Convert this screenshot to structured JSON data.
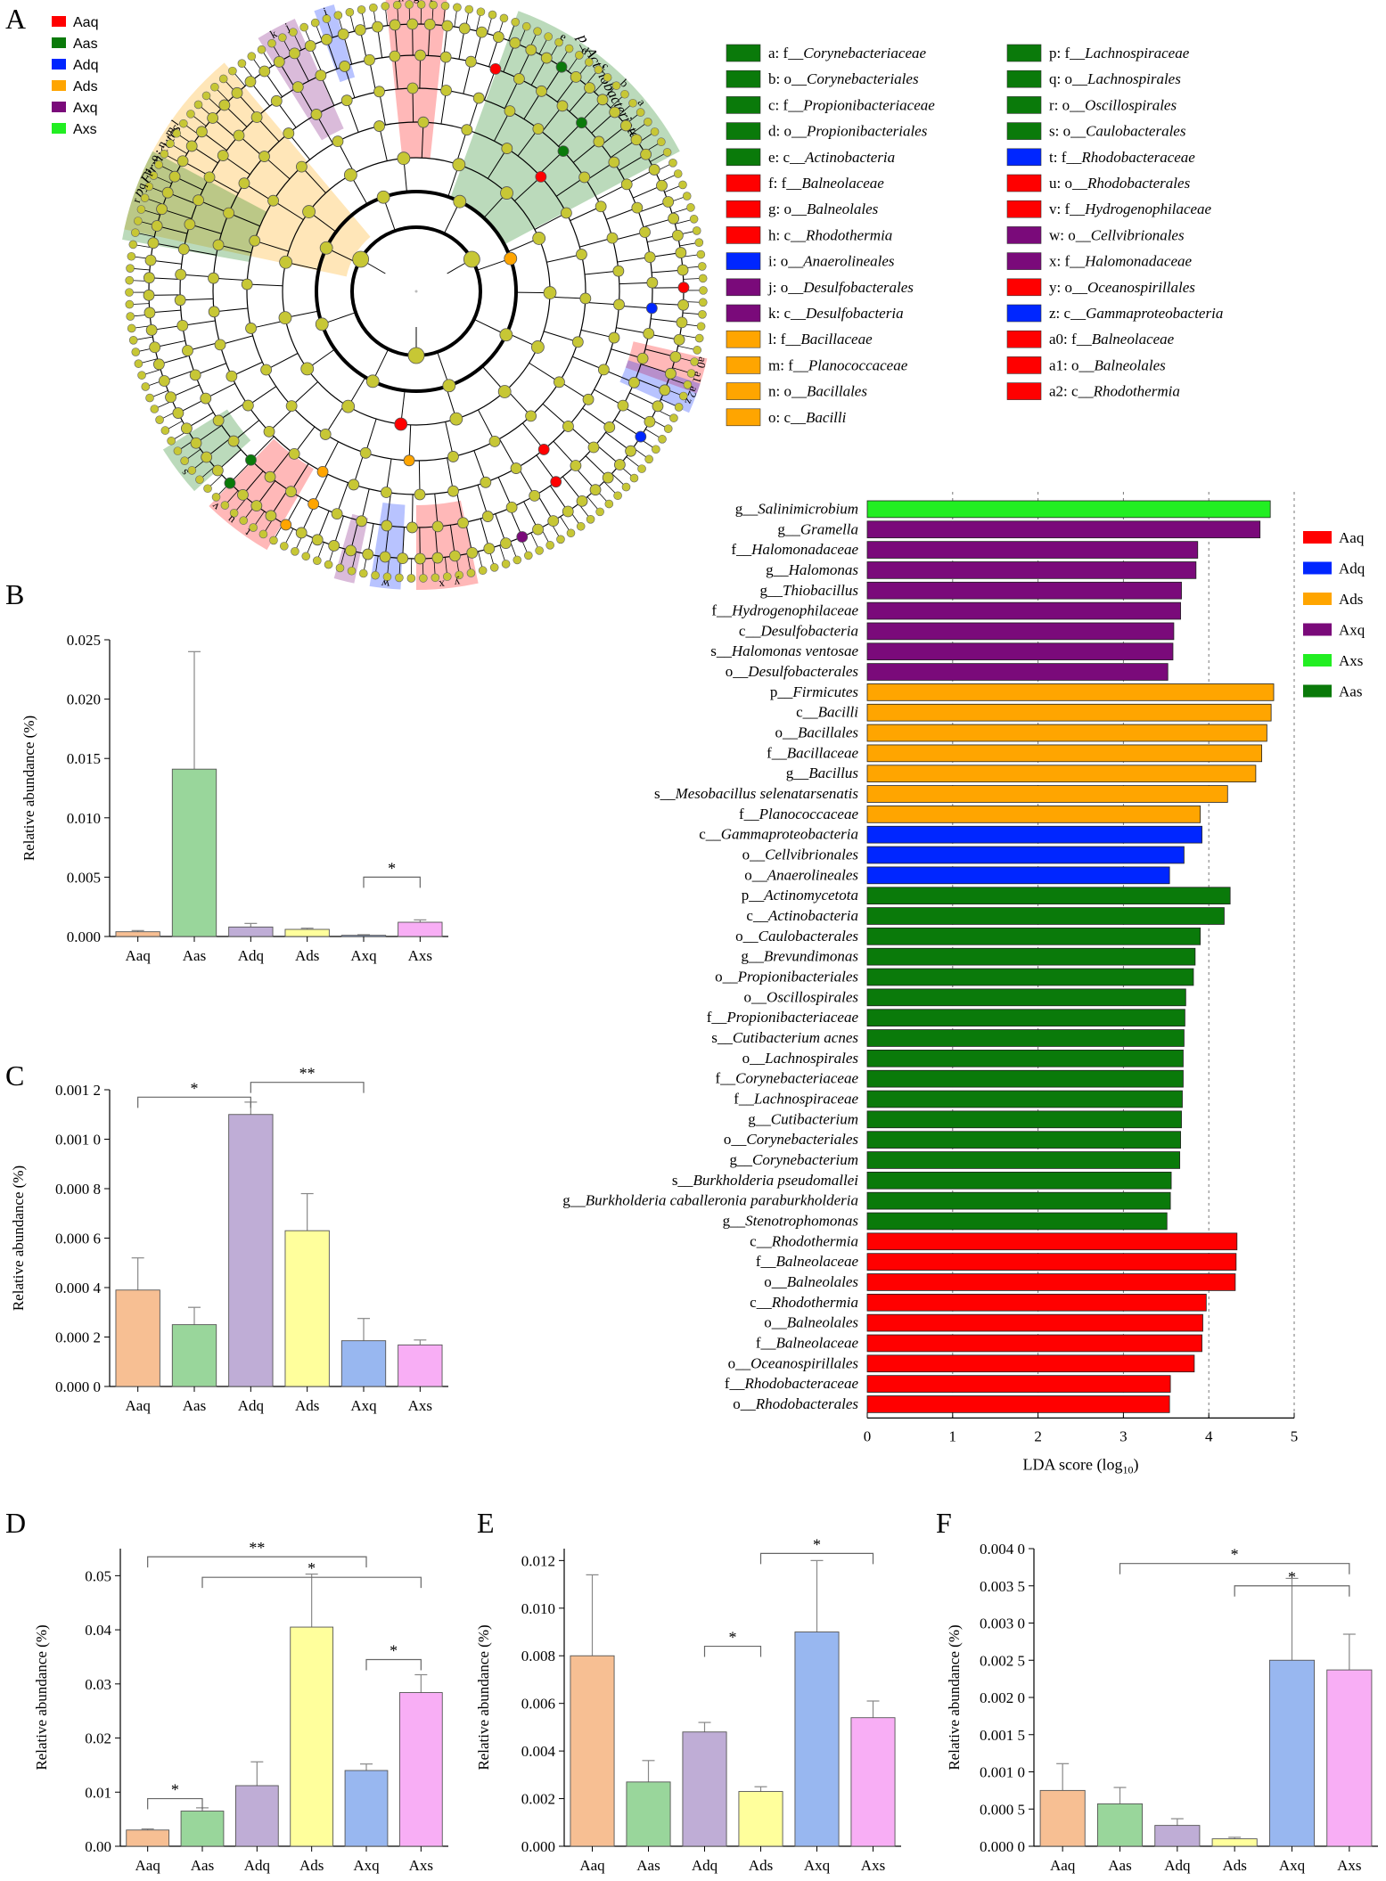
{
  "panel_letters": [
    "A",
    "B",
    "C",
    "D",
    "E",
    "F"
  ],
  "colors": {
    "Aaq": "#ff0000",
    "Aas": "#0a7a0a",
    "Adq": "#0026ff",
    "Ads": "#ffa500",
    "Axq": "#7a0a7a",
    "Axs": "#22ee22",
    "bar_Aaq": "#f7bf93",
    "bar_Aas": "#99d69b",
    "bar_Adq": "#bfadd6",
    "bar_Ads": "#ffff9c",
    "bar_Axq": "#98b7f0",
    "bar_Axs": "#f8aef5",
    "node": "#c7c735"
  },
  "cladogram": {
    "group_legend": [
      {
        "name": "Aaq",
        "color": "#ff0000"
      },
      {
        "name": "Aas",
        "color": "#0a7a0a"
      },
      {
        "name": "Adq",
        "color": "#0026ff"
      },
      {
        "name": "Ads",
        "color": "#ffa500"
      },
      {
        "name": "Axq",
        "color": "#7a0a7a"
      },
      {
        "name": "Axs",
        "color": "#22ee22"
      }
    ],
    "clade_labels": [
      "p_Firmicutes",
      "p_Actinobacteriota"
    ],
    "sector_letters": [
      "h",
      "g",
      "f",
      "i",
      "k",
      "j",
      "o",
      "n",
      "m",
      "l",
      "r",
      "q",
      "p",
      "a",
      "b",
      "c",
      "d",
      "e",
      "a0",
      "a1",
      "a2",
      "z",
      "s",
      "t",
      "u",
      "v",
      "w",
      "x",
      "y"
    ],
    "taxa_legend": [
      {
        "key": "a:",
        "rank": "f__",
        "name": "Corynebacteriaceae",
        "color": "#0a7a0a"
      },
      {
        "key": "b:",
        "rank": "o__",
        "name": "Corynebacteriales",
        "color": "#0a7a0a"
      },
      {
        "key": "c:",
        "rank": "f__",
        "name": "Propionibacteriaceae",
        "color": "#0a7a0a"
      },
      {
        "key": "d:",
        "rank": "o__",
        "name": "Propionibacteriales",
        "color": "#0a7a0a"
      },
      {
        "key": "e:",
        "rank": "c__",
        "name": "Actinobacteria",
        "color": "#0a7a0a"
      },
      {
        "key": "f:",
        "rank": "f__",
        "name": "Balneolaceae",
        "color": "#ff0000"
      },
      {
        "key": "g:",
        "rank": "o__",
        "name": "Balneolales",
        "color": "#ff0000"
      },
      {
        "key": "h:",
        "rank": "c__",
        "name": "Rhodothermia",
        "color": "#ff0000"
      },
      {
        "key": "i:",
        "rank": "o__",
        "name": "Anaerolineales",
        "color": "#0026ff"
      },
      {
        "key": "j:",
        "rank": "o__",
        "name": "Desulfobacterales",
        "color": "#7a0a7a"
      },
      {
        "key": "k:",
        "rank": "c__",
        "name": "Desulfobacteria",
        "color": "#7a0a7a"
      },
      {
        "key": "l:",
        "rank": "f__",
        "name": "Bacillaceae",
        "color": "#ffa500"
      },
      {
        "key": "m:",
        "rank": "f__",
        "name": "Planococcaceae",
        "color": "#ffa500"
      },
      {
        "key": "n:",
        "rank": "o__",
        "name": "Bacillales",
        "color": "#ffa500"
      },
      {
        "key": "o:",
        "rank": "c__",
        "name": "Bacilli",
        "color": "#ffa500"
      },
      {
        "key": "p:",
        "rank": "f__",
        "name": "Lachnospiraceae",
        "color": "#0a7a0a"
      },
      {
        "key": "q:",
        "rank": "o__",
        "name": "Lachnospirales",
        "color": "#0a7a0a"
      },
      {
        "key": "r:",
        "rank": "o__",
        "name": "Oscillospirales",
        "color": "#0a7a0a"
      },
      {
        "key": "s:",
        "rank": "o__",
        "name": "Caulobacterales",
        "color": "#0a7a0a"
      },
      {
        "key": "t:",
        "rank": "f__",
        "name": "Rhodobacteraceae",
        "color": "#0026ff"
      },
      {
        "key": "u:",
        "rank": "o__",
        "name": "Rhodobacterales",
        "color": "#ff0000"
      },
      {
        "key": "v:",
        "rank": "f__",
        "name": "Hydrogenophilaceae",
        "color": "#ff0000"
      },
      {
        "key": "w:",
        "rank": "o__",
        "name": "Cellvibrionales",
        "color": "#7a0a7a"
      },
      {
        "key": "x:",
        "rank": "f__",
        "name": "Halomonadaceae",
        "color": "#7a0a7a"
      },
      {
        "key": "y:",
        "rank": "o__",
        "name": "Oceanospirillales",
        "color": "#ff0000"
      },
      {
        "key": "z:",
        "rank": "c__",
        "name": "Gammaproteobacteria",
        "color": "#0026ff"
      },
      {
        "key": "a0:",
        "rank": "f__",
        "name": "Balneolaceae",
        "color": "#ff0000"
      },
      {
        "key": "a1:",
        "rank": "o__",
        "name": "Balneolales",
        "color": "#ff0000"
      },
      {
        "key": "a2:",
        "rank": "c__",
        "name": "Rhodothermia",
        "color": "#ff0000"
      }
    ]
  },
  "chart_data": [
    {
      "panel": "B",
      "type": "bar",
      "categories": [
        "Aaq",
        "Aas",
        "Adq",
        "Ads",
        "Axq",
        "Axs"
      ],
      "values": [
        0.0004,
        0.0141,
        0.0008,
        0.0006,
        0.0001,
        0.0012
      ],
      "errors": [
        0.0001,
        0.0099,
        0.0003,
        0.0001,
        5e-05,
        0.0002
      ],
      "ylabel": "Relative abundance (%)",
      "ylim": [
        0,
        0.025
      ],
      "yticks": [
        0.0,
        0.005,
        0.01,
        0.015,
        0.02,
        0.025
      ],
      "yticklabels": [
        "0.000",
        "0.005",
        "0.010",
        "0.015",
        "0.020",
        "0.025"
      ],
      "significance": [
        {
          "from": "Axq",
          "to": "Axs",
          "label": "*",
          "level": 0.005
        }
      ]
    },
    {
      "panel": "C",
      "type": "bar",
      "categories": [
        "Aaq",
        "Aas",
        "Adq",
        "Ads",
        "Axq",
        "Axs"
      ],
      "values": [
        0.00039,
        0.00025,
        0.0011,
        0.00063,
        0.000185,
        0.000168
      ],
      "errors": [
        0.00013,
        7e-05,
        5e-05,
        0.00015,
        9e-05,
        2e-05
      ],
      "ylabel": "Relative abundance (%)",
      "ylim": [
        0,
        0.0012
      ],
      "yticks": [
        0.0,
        0.0002,
        0.0004,
        0.0006,
        0.0008,
        0.001,
        0.0012
      ],
      "yticklabels": [
        "0.000 0",
        "0.000 2",
        "0.000 4",
        "0.000 6",
        "0.000 8",
        "0.001 0",
        "0.001 2"
      ],
      "significance": [
        {
          "from": "Aaq",
          "to": "Adq",
          "label": "*",
          "level": 0.00117
        },
        {
          "from": "Adq",
          "to": "Axq",
          "label": "**",
          "level": 0.00123
        }
      ]
    },
    {
      "panel": "lda",
      "type": "bar",
      "orientation": "horizontal",
      "xlabel": "LDA score (log",
      "xlabel_sub": "10",
      "xlabel_tail": ")",
      "xlim": [
        0,
        5
      ],
      "xticks": [
        0,
        1,
        2,
        3,
        4,
        5
      ],
      "grid": "dashed vertical",
      "legend": [
        "Aaq",
        "Adq",
        "Ads",
        "Axq",
        "Axs",
        "Aas"
      ],
      "legend_position": "right",
      "series": [
        {
          "rank": "g__",
          "name": "Salinimicrobium",
          "value": 4.72,
          "group": "Axs"
        },
        {
          "rank": "g__",
          "name": "Gramella",
          "value": 4.6,
          "group": "Axq"
        },
        {
          "rank": "f__",
          "name": "Halomonadaceae",
          "value": 3.87,
          "group": "Axq"
        },
        {
          "rank": "g__",
          "name": "Halomonas",
          "value": 3.85,
          "group": "Axq"
        },
        {
          "rank": "g__",
          "name": "Thiobacillus",
          "value": 3.68,
          "group": "Axq"
        },
        {
          "rank": "f__",
          "name": "Hydrogenophilaceae",
          "value": 3.67,
          "group": "Axq"
        },
        {
          "rank": "c__",
          "name": "Desulfobacteria",
          "value": 3.59,
          "group": "Axq"
        },
        {
          "rank": "s__",
          "name": "Halomonas ventosae",
          "value": 3.58,
          "group": "Axq"
        },
        {
          "rank": "o__",
          "name": "Desulfobacterales",
          "value": 3.52,
          "group": "Axq"
        },
        {
          "rank": "p__",
          "name": "Firmicutes",
          "value": 4.76,
          "group": "Ads"
        },
        {
          "rank": "c__",
          "name": "Bacilli",
          "value": 4.73,
          "group": "Ads"
        },
        {
          "rank": "o__",
          "name": "Bacillales",
          "value": 4.68,
          "group": "Ads"
        },
        {
          "rank": "f__",
          "name": "Bacillaceae",
          "value": 4.62,
          "group": "Ads"
        },
        {
          "rank": "g__",
          "name": "Bacillus",
          "value": 4.55,
          "group": "Ads"
        },
        {
          "rank": "s__",
          "name": "Mesobacillus selenatarsenatis",
          "value": 4.22,
          "group": "Ads"
        },
        {
          "rank": "f__",
          "name": "Planococcaceae",
          "value": 3.9,
          "group": "Ads"
        },
        {
          "rank": "c__",
          "name": "Gammaproteobacteria",
          "value": 3.92,
          "group": "Adq"
        },
        {
          "rank": "o__",
          "name": "Cellvibrionales",
          "value": 3.71,
          "group": "Adq"
        },
        {
          "rank": "o__",
          "name": "Anaerolineales",
          "value": 3.54,
          "group": "Adq"
        },
        {
          "rank": "p__",
          "name": "Actinomycetota",
          "value": 4.25,
          "group": "Aas"
        },
        {
          "rank": "c__",
          "name": "Actinobacteria",
          "value": 4.18,
          "group": "Aas"
        },
        {
          "rank": "o__",
          "name": "Caulobacterales",
          "value": 3.9,
          "group": "Aas"
        },
        {
          "rank": "g__",
          "name": "Brevundimonas",
          "value": 3.84,
          "group": "Aas"
        },
        {
          "rank": "o__",
          "name": "Propionibacteriales",
          "value": 3.82,
          "group": "Aas"
        },
        {
          "rank": "o__",
          "name": "Oscillospirales",
          "value": 3.73,
          "group": "Aas"
        },
        {
          "rank": "f__",
          "name": "Propionibacteriaceae",
          "value": 3.72,
          "group": "Aas"
        },
        {
          "rank": "s__",
          "name": "Cutibacterium acnes",
          "value": 3.71,
          "group": "Aas"
        },
        {
          "rank": "o__",
          "name": "Lachnospirales",
          "value": 3.7,
          "group": "Aas"
        },
        {
          "rank": "f__",
          "name": "Corynebacteriaceae",
          "value": 3.7,
          "group": "Aas"
        },
        {
          "rank": "f__",
          "name": "Lachnospiraceae",
          "value": 3.69,
          "group": "Aas"
        },
        {
          "rank": "g__",
          "name": "Cutibacterium",
          "value": 3.68,
          "group": "Aas"
        },
        {
          "rank": "o__",
          "name": "Corynebacteriales",
          "value": 3.67,
          "group": "Aas"
        },
        {
          "rank": "g__",
          "name": "Corynebacterium",
          "value": 3.66,
          "group": "Aas"
        },
        {
          "rank": "s__",
          "name": "Burkholderia pseudomallei",
          "value": 3.56,
          "group": "Aas"
        },
        {
          "rank": "g__",
          "name": "Burkholderia caballeronia paraburkholderia",
          "value": 3.55,
          "group": "Aas"
        },
        {
          "rank": "g__",
          "name": "Stenotrophomonas",
          "value": 3.51,
          "group": "Aas"
        },
        {
          "rank": "c__",
          "name": "Rhodothermia",
          "value": 4.33,
          "group": "Aaq"
        },
        {
          "rank": "f__",
          "name": "Balneolaceae",
          "value": 4.32,
          "group": "Aaq"
        },
        {
          "rank": "o__",
          "name": "Balneolales",
          "value": 4.31,
          "group": "Aaq"
        },
        {
          "rank": "c__",
          "name": "Rhodothermia",
          "value": 3.97,
          "group": "Aaq"
        },
        {
          "rank": "o__",
          "name": "Balneolales",
          "value": 3.93,
          "group": "Aaq"
        },
        {
          "rank": "f__",
          "name": "Balneolaceae",
          "value": 3.92,
          "group": "Aaq"
        },
        {
          "rank": "o__",
          "name": "Oceanospirillales",
          "value": 3.83,
          "group": "Aaq"
        },
        {
          "rank": "f__",
          "name": "Rhodobacteraceae",
          "value": 3.55,
          "group": "Aaq"
        },
        {
          "rank": "o__",
          "name": "Rhodobacterales",
          "value": 3.54,
          "group": "Aaq"
        }
      ]
    },
    {
      "panel": "D",
      "type": "bar",
      "categories": [
        "Aaq",
        "Aas",
        "Adq",
        "Ads",
        "Axq",
        "Axs"
      ],
      "values": [
        0.003,
        0.0065,
        0.0112,
        0.0405,
        0.014,
        0.0284
      ],
      "errors": [
        0.0002,
        0.0006,
        0.0044,
        0.0098,
        0.0012,
        0.0033
      ],
      "ylabel": "Relative abundance (%)",
      "ylim": [
        0,
        0.055
      ],
      "yticks": [
        0.0,
        0.01,
        0.02,
        0.03,
        0.04,
        0.05
      ],
      "yticklabels": [
        "0.00",
        "0.01",
        "0.02",
        "0.03",
        "0.04",
        "0.05"
      ],
      "significance": [
        {
          "from": "Aaq",
          "to": "Aas",
          "label": "*",
          "level": 0.0088
        },
        {
          "from": "Aaq",
          "to": "Axq",
          "label": "**",
          "level": 0.0535
        },
        {
          "from": "Aas",
          "to": "Axs",
          "label": "*",
          "level": 0.0497
        },
        {
          "from": "Axq",
          "to": "Axs",
          "label": "*",
          "level": 0.0345
        }
      ]
    },
    {
      "panel": "E",
      "type": "bar",
      "categories": [
        "Aaq",
        "Aas",
        "Adq",
        "Ads",
        "Axq",
        "Axs"
      ],
      "values": [
        0.008,
        0.0027,
        0.0048,
        0.0023,
        0.009,
        0.0054
      ],
      "errors": [
        0.0034,
        0.0009,
        0.0004,
        0.0002,
        0.003,
        0.0007
      ],
      "ylabel": "Relative abundance (%)",
      "ylim": [
        0,
        0.0125
      ],
      "yticks": [
        0.0,
        0.002,
        0.004,
        0.006,
        0.008,
        0.01,
        0.012
      ],
      "yticklabels": [
        "0.000",
        "0.002",
        "0.004",
        "0.006",
        "0.008",
        "0.010",
        "0.012"
      ],
      "significance": [
        {
          "from": "Adq",
          "to": "Ads",
          "label": "*",
          "level": 0.0084
        },
        {
          "from": "Ads",
          "to": "Axs",
          "label": "*",
          "level": 0.0123
        }
      ]
    },
    {
      "panel": "F",
      "type": "bar",
      "categories": [
        "Aaq",
        "Aas",
        "Adq",
        "Ads",
        "Axq",
        "Axs"
      ],
      "values": [
        0.00075,
        0.00057,
        0.00028,
        0.0001,
        0.0025,
        0.00237
      ],
      "errors": [
        0.00036,
        0.00022,
        9e-05,
        2e-05,
        0.0011,
        0.00048
      ],
      "ylabel": "Relative abundance (%)",
      "ylim": [
        0,
        0.004
      ],
      "yticks": [
        0.0,
        0.0005,
        0.001,
        0.0015,
        0.002,
        0.0025,
        0.003,
        0.0035,
        0.004
      ],
      "yticklabels": [
        "0.000 0",
        "0.000 5",
        "0.001 0",
        "0.001 5",
        "0.002 0",
        "0.002 5",
        "0.003 0",
        "0.003 5",
        "0.004 0"
      ],
      "significance": [
        {
          "from": "Aas",
          "to": "Axs",
          "label": "*",
          "level": 0.0038
        },
        {
          "from": "Ads",
          "to": "Axs",
          "label": "*",
          "level": 0.0035
        }
      ]
    }
  ]
}
